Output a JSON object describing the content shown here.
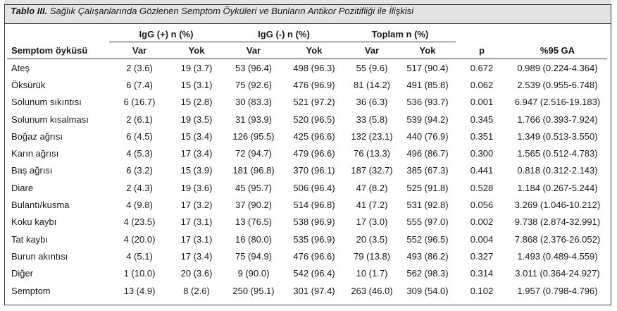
{
  "caption": {
    "label": "Tablo III.",
    "text": " Sağlık Çalışanlarında Gözlenen Semptom Öyküleri ve Bunların Antikor Pozitifliği ile İlişkisi"
  },
  "headers": {
    "group_igg_pos": "IgG (+) n (%)",
    "group_igg_neg": "IgG (-) n (%)",
    "group_total": "Toplam n (%)",
    "symptom": "Semptom öyküsü",
    "var1": "Var",
    "yok1": "Yok",
    "var2": "Var",
    "yok2": "Yok",
    "var3": "Var",
    "yok3": "Yok",
    "p": "p",
    "ci": "%95 GA"
  },
  "rows": [
    [
      "Ateş",
      "2 (3.6)",
      "19 (3.7)",
      "53 (96.4)",
      "498 (96.3)",
      "55 (9.6)",
      "517 (90.4)",
      "0.672",
      "0.989 (0.224-4.364)"
    ],
    [
      "Öksürük",
      "6 (7.4)",
      "15 (3.1)",
      "75 (92.6)",
      "476 (96.9)",
      "81 (14.2)",
      "491 (85.8)",
      "0.062",
      "2.539 (0.955-6.748)"
    ],
    [
      "Solunum sıkıntısı",
      "6 (16.7)",
      "15 (2.8)",
      "30 (83.3)",
      "521 (97.2)",
      "36 (6.3)",
      "536 (93.7)",
      "0.001",
      "6.947 (2.516-19.183)"
    ],
    [
      "Solunum kısalması",
      "2 (6.1)",
      "19 (3.5)",
      "31 (93.9)",
      "520 (96.5)",
      "33 (5.8)",
      "539 (94.2)",
      "0.345",
      "1.766 (0.393-7.924)"
    ],
    [
      "Boğaz ağrısı",
      "6 (4.5)",
      "15 (3.4)",
      "126 (95.5)",
      "425 (96.6)",
      "132 (23.1)",
      "440 (76.9)",
      "0.351",
      "1.349 (0.513-3.550)"
    ],
    [
      "Karın ağrısı",
      "4 (5.3)",
      "17 (3.4)",
      "72 (94.7)",
      "479 (96.6)",
      "76 (13.3)",
      "496 (86.7)",
      "0.300",
      "1.565 (0.512-4.783)"
    ],
    [
      "Baş ağrısı",
      "6 (3.2)",
      "15 (3.9)",
      "181 (96.8)",
      "370 (96.1)",
      "187 (32.7)",
      "385 (67.3)",
      "0.441",
      "0.818 (0.312-2.143)"
    ],
    [
      "Diare",
      "2 (4.3)",
      "19 (3.6)",
      "45 (95.7)",
      "506 (96.4)",
      "47 (8.2)",
      "525 (91.8)",
      "0.528",
      "1.184 (0.267-5.244)"
    ],
    [
      "Bulantı/kusma",
      "4 (9.8)",
      "17 (3.2)",
      "37 (90.2)",
      "514 (96.8)",
      "41 (7.2)",
      "531 (92.8)",
      "0.056",
      "3.269 (1.046-10.212)"
    ],
    [
      "Koku kaybı",
      "4 (23.5)",
      "17 (3.1)",
      "13 (76.5)",
      "538 (96.9)",
      "17 (3.0)",
      "555 (97.0)",
      "0.002",
      "9.738 (2.874-32.991)"
    ],
    [
      "Tat kaybı",
      "4 (20.0)",
      "17 (3.1)",
      "16 (80.0)",
      "535 (96.9)",
      "20 (3.5)",
      "552 (96.5)",
      "0.004",
      "7.868 (2.376-26.052)"
    ],
    [
      "Burun akıntısı",
      "4 (5.1)",
      "17 (3.4)",
      "75 (94.9)",
      "476 (96.6)",
      "79 (13.8)",
      "493 (86.2)",
      "0.327",
      "1.493 (0.489-4.559)"
    ],
    [
      "Diğer",
      "1 (10.0)",
      "20 (3.6)",
      "9 (90.0)",
      "542 (96.4)",
      "10 (1.7)",
      "562 (98.3)",
      "0.314",
      "3.011 (0.364-24.927)"
    ],
    [
      "Semptom",
      "13 (4.9)",
      "8 (2.6)",
      "250 (95.1)",
      "301 (97.4)",
      "263 (46.0)",
      "309 (54.0)",
      "0.102",
      "1.957 (0.798-4.796)"
    ]
  ]
}
